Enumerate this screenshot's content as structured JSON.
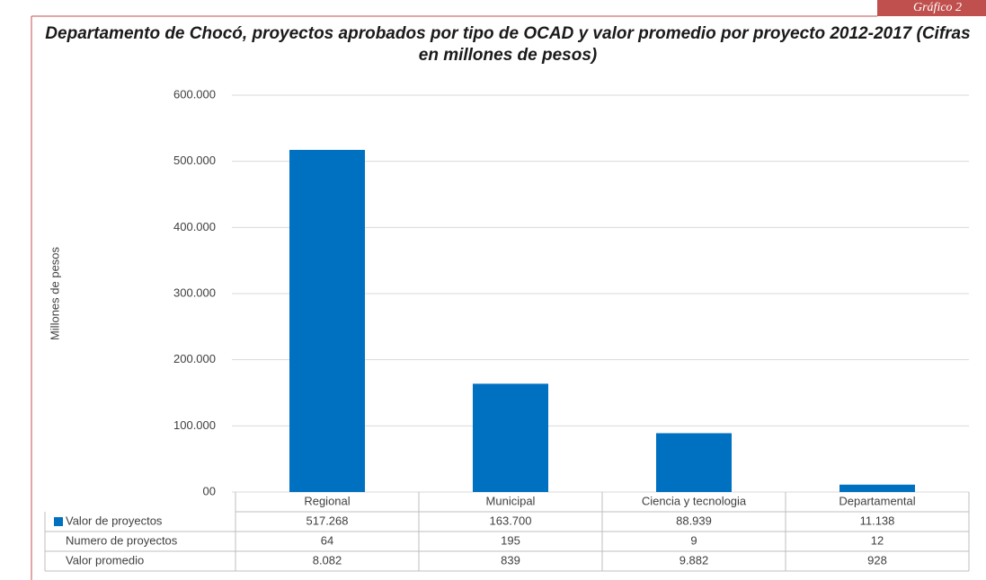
{
  "badge": "Gráfico 2",
  "chart_data": {
    "type": "bar",
    "title": "Departamento de Chocó, proyectos aprobados por tipo de OCAD y valor promedio por proyecto 2012-2017 (Cifras en millones de pesos)",
    "y_label": "Millones de pesos",
    "categories": [
      "Regional",
      "Municipal",
      "Ciencia y tecnologia",
      "Departamental"
    ],
    "series": [
      {
        "name": "Valor de proyectos",
        "color": "#0070c0",
        "values": [
          517268,
          163700,
          88939,
          11138
        ],
        "value_labels": [
          "517.268",
          "163.700",
          "88.939",
          "11.138"
        ]
      }
    ],
    "table_rows": [
      {
        "name": "Numero de proyectos",
        "values": [
          64,
          195,
          9,
          12
        ]
      },
      {
        "name": "Valor promedio",
        "values": [
          8082,
          839,
          9882,
          928
        ],
        "value_labels": [
          "8.082",
          "839",
          "9.882",
          "928"
        ]
      }
    ],
    "ylim": [
      0,
      600000
    ],
    "yticks": [
      {
        "value": 0,
        "label": "00"
      },
      {
        "value": 100000,
        "label": "100.000"
      },
      {
        "value": 200000,
        "label": "200.000"
      },
      {
        "value": 300000,
        "label": "300.000"
      },
      {
        "value": 400000,
        "label": "400.000"
      },
      {
        "value": 500000,
        "label": "500.000"
      },
      {
        "value": 600000,
        "label": "600.000"
      }
    ],
    "grid": true
  }
}
